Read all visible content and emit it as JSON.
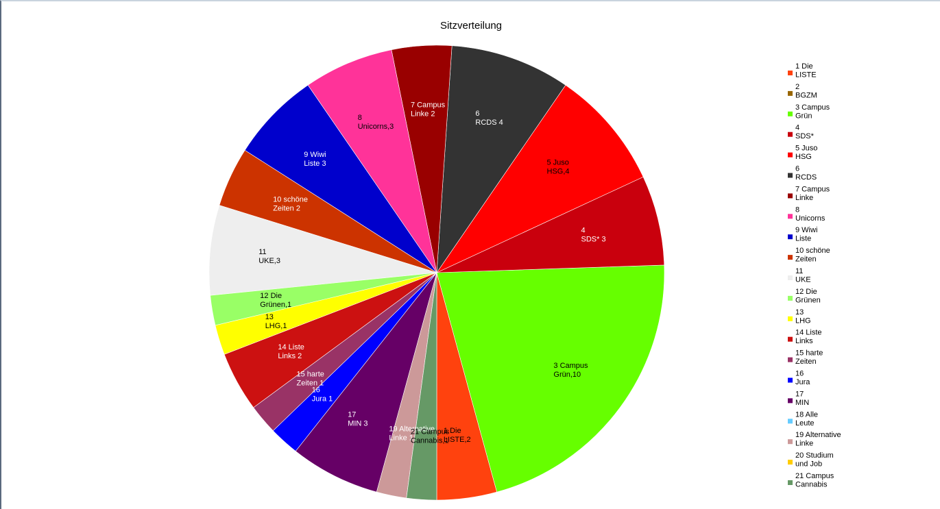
{
  "chart_data": {
    "type": "pie",
    "title": "Sitzverteilung",
    "legend_position": "right",
    "slices": [
      {
        "legend": [
          "1 Die",
          "LISTE"
        ],
        "label": [
          "1 Die",
          "LISTE,2"
        ],
        "value": 2,
        "color": "#ff420e",
        "label_color": "#000000"
      },
      {
        "legend": [
          "2",
          "BGZM"
        ],
        "label": [],
        "value": 0,
        "color": "#996600",
        "label_color": "#000000"
      },
      {
        "legend": [
          "3 Campus",
          "Grün"
        ],
        "label": [
          "3 Campus",
          "Grün,10"
        ],
        "value": 10,
        "color": "#66ff00",
        "label_color": "#000000"
      },
      {
        "legend": [
          "4",
          "SDS*"
        ],
        "label": [
          "4",
          "SDS* 3"
        ],
        "value": 3,
        "color": "#c9000d",
        "label_color": "#ffffff"
      },
      {
        "legend": [
          "5 Juso",
          "HSG"
        ],
        "label": [
          "5 Juso",
          "HSG,4"
        ],
        "value": 4,
        "color": "#ff0000",
        "label_color": "#000000"
      },
      {
        "legend": [
          "6",
          "RCDS"
        ],
        "label": [
          "6",
          "RCDS 4"
        ],
        "value": 4,
        "color": "#333333",
        "label_color": "#ffffff"
      },
      {
        "legend": [
          "7 Campus",
          "Linke"
        ],
        "label": [
          "7 Campus",
          "Linke 2"
        ],
        "value": 2,
        "color": "#990000",
        "label_color": "#ffffff"
      },
      {
        "legend": [
          "8",
          "Unicorns"
        ],
        "label": [
          "8",
          "Unicorns,3"
        ],
        "value": 3,
        "color": "#ff3399",
        "label_color": "#000000"
      },
      {
        "legend": [
          "9 Wiwi",
          "Liste"
        ],
        "label": [
          "9 Wiwi",
          "Liste 3"
        ],
        "value": 3,
        "color": "#0000cc",
        "label_color": "#ffffff"
      },
      {
        "legend": [
          "10 schöne",
          "Zeiten"
        ],
        "label": [
          "10 schöne",
          "Zeiten 2"
        ],
        "value": 2,
        "color": "#cc3300",
        "label_color": "#ffffff"
      },
      {
        "legend": [
          "11",
          "UKE"
        ],
        "label": [
          "11",
          "UKE,3"
        ],
        "value": 3,
        "color": "#eeeeee",
        "label_color": "#000000"
      },
      {
        "legend": [
          "12 Die",
          "Grünen"
        ],
        "label": [
          "12 Die",
          "Grünen,1"
        ],
        "value": 1,
        "color": "#99ff66",
        "label_color": "#000000"
      },
      {
        "legend": [
          "13",
          "LHG"
        ],
        "label": [
          "13",
          "LHG,1"
        ],
        "value": 1,
        "color": "#ffff00",
        "label_color": "#000000"
      },
      {
        "legend": [
          "14 Liste",
          "Links"
        ],
        "label": [
          "14 Liste",
          "Links 2"
        ],
        "value": 2,
        "color": "#cc1111",
        "label_color": "#ffffff"
      },
      {
        "legend": [
          "15 harte",
          "Zeiten"
        ],
        "label": [
          "15 harte",
          "Zeiten 1"
        ],
        "value": 1,
        "color": "#993366",
        "label_color": "#ffffff"
      },
      {
        "legend": [
          "16",
          "Jura"
        ],
        "label": [
          "16",
          "Jura 1"
        ],
        "value": 1,
        "color": "#0000ff",
        "label_color": "#ffffff"
      },
      {
        "legend": [
          "17",
          "MIN"
        ],
        "label": [
          "17",
          "MIN 3"
        ],
        "value": 3,
        "color": "#660066",
        "label_color": "#ffffff"
      },
      {
        "legend": [
          "18 Alle",
          "Leute"
        ],
        "label": [],
        "value": 0,
        "color": "#66ccff",
        "label_color": "#000000"
      },
      {
        "legend": [
          "19 Alternative",
          "Linke"
        ],
        "label": [
          "19 Alternative",
          "Linke 1"
        ],
        "value": 1,
        "color": "#cc9999",
        "label_color": "#ffffff"
      },
      {
        "legend": [
          "20 Studium",
          "und Job"
        ],
        "label": [],
        "value": 0,
        "color": "#ffcc00",
        "label_color": "#000000"
      },
      {
        "legend": [
          "21 Campus",
          "Cannabis"
        ],
        "label": [
          "21 Campus",
          "Cannabis,1"
        ],
        "value": 1,
        "color": "#669966",
        "label_color": "#000000"
      }
    ]
  }
}
